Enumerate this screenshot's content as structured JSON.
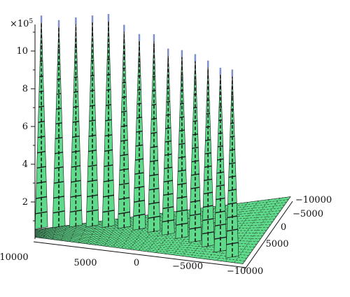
{
  "chart_data": {
    "type": "3d-surface",
    "title": "",
    "z_axis": {
      "multiplier_base": "×10",
      "multiplier_exp": "5",
      "ticks": [
        2,
        4,
        6,
        8,
        10
      ],
      "tick_labels": [
        "2",
        "4",
        "6",
        "8",
        "10"
      ],
      "range": [
        0,
        11
      ]
    },
    "x_axis": {
      "ticks": [
        10000,
        5000,
        0,
        -5000,
        -10000
      ],
      "tick_labels": [
        "10000",
        "5000",
        "0",
        "−5000",
        "−10000"
      ],
      "range": [
        -10000,
        10000
      ]
    },
    "y_axis": {
      "ticks": [
        -10000,
        -5000,
        0,
        5000
      ],
      "tick_labels": [
        "−10000",
        "−5000",
        "0",
        "5000"
      ],
      "range": [
        -10000,
        10000
      ]
    },
    "surface": {
      "description": "diagonal row of sharp peaks",
      "peaks": [
        {
          "x": 9500,
          "y": -9500,
          "z": 11.3
        },
        {
          "x": 8100,
          "y": -8100,
          "z": 11.0
        },
        {
          "x": 6700,
          "y": -6700,
          "z": 11.1
        },
        {
          "x": 5300,
          "y": -5300,
          "z": 11.2
        },
        {
          "x": 3900,
          "y": -3900,
          "z": 11.3
        },
        {
          "x": 2500,
          "y": -2500,
          "z": 10.8
        },
        {
          "x": 1100,
          "y": -1100,
          "z": 10.4
        },
        {
          "x": -300,
          "y": 300,
          "z": 10.5
        },
        {
          "x": -1700,
          "y": 1700,
          "z": 9.9
        },
        {
          "x": -3100,
          "y": 3100,
          "z": 10.0
        },
        {
          "x": -4500,
          "y": 4500,
          "z": 10.0
        },
        {
          "x": -5900,
          "y": 5900,
          "z": 9.9
        },
        {
          "x": -7300,
          "y": 7300,
          "z": 9.8
        },
        {
          "x": -8700,
          "y": 8700,
          "z": 10.0
        }
      ],
      "base_level": 0.2
    },
    "colors": {
      "surface_fill": "#5fd98a",
      "mesh_line": "#1a1a1a",
      "peak_tip": "#8090c8"
    }
  }
}
